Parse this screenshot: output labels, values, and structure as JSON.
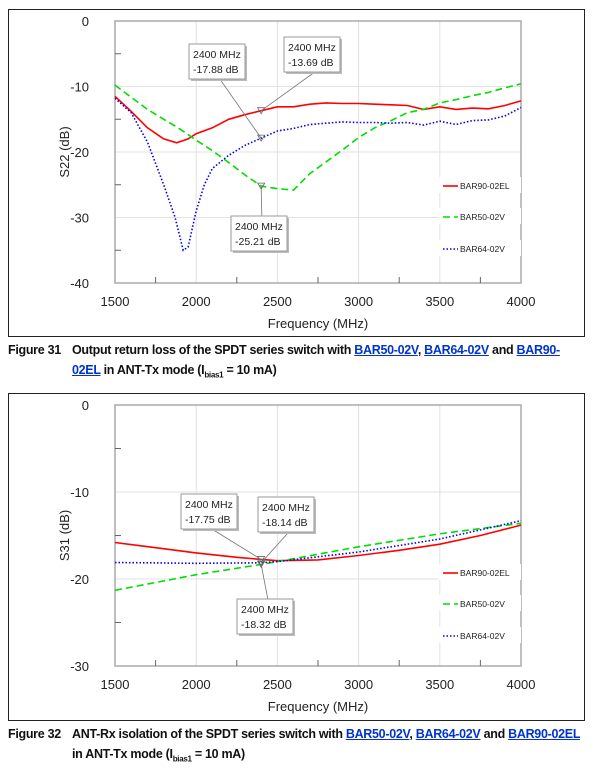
{
  "figures": [
    {
      "caption_number": "Figure 31",
      "caption_pre": "Output return loss of the SPDT series switch with ",
      "caption_links": [
        "BAR50-02V",
        "BAR64-02V",
        "BAR90-02EL"
      ],
      "caption_sep1": ", ",
      "caption_sep2": " and ",
      "caption_post": " in   ANT-Tx mode (I",
      "caption_sub": "bias1",
      "caption_end": " = 10 mA)"
    },
    {
      "caption_number": "Figure 32",
      "caption_pre": "ANT-Rx isolation of the SPDT series switch with ",
      "caption_links": [
        "BAR50-02V",
        "BAR64-02V",
        "BAR90-02EL"
      ],
      "caption_sep1": ", ",
      "caption_sep2": " and ",
      "caption_post": " in ANT-Tx mode (I",
      "caption_sub": "bias1",
      "caption_end": " = 10 mA)"
    }
  ],
  "chart_data": [
    {
      "type": "line",
      "xlabel": "Frequency (MHz)",
      "ylabel": "S22 (dB)",
      "xlim": [
        1500,
        4000
      ],
      "ylim": [
        -40,
        0
      ],
      "xticks": [
        "1500",
        "2000",
        "2500",
        "3000",
        "3500",
        "4000"
      ],
      "yticks": [
        "0",
        "-10",
        "-20",
        "-30",
        "-40"
      ],
      "grid": true,
      "legend_position": "right",
      "series": [
        {
          "name": "BAR90-02EL",
          "color": "#ff0000",
          "style": "solid",
          "x": [
            1500,
            1600,
            1700,
            1800,
            1880,
            1950,
            2000,
            2100,
            2200,
            2300,
            2400,
            2500,
            2600,
            2700,
            2800,
            2900,
            3000,
            3100,
            3200,
            3300,
            3400,
            3500,
            3600,
            3700,
            3800,
            3900,
            4000
          ],
          "y": [
            -11.5,
            -13.8,
            -16.3,
            -18.0,
            -18.6,
            -18.0,
            -17.2,
            -16.3,
            -15.0,
            -14.3,
            -13.69,
            -13.1,
            -13.1,
            -12.7,
            -12.5,
            -12.6,
            -12.6,
            -12.7,
            -12.8,
            -12.9,
            -13.5,
            -13.1,
            -13.5,
            -13.3,
            -13.4,
            -12.9,
            -12.2
          ]
        },
        {
          "name": "BAR50-02V",
          "color": "#00dd00",
          "style": "dashed",
          "x": [
            1500,
            1700,
            1900,
            2000,
            2100,
            2200,
            2300,
            2400,
            2500,
            2600,
            2700,
            2800,
            2900,
            3000,
            3100,
            3200,
            3300,
            3400,
            3500,
            3600,
            3700,
            3800,
            3900,
            4000
          ],
          "y": [
            -9.8,
            -13.5,
            -16.5,
            -18.2,
            -19.8,
            -21.6,
            -23.5,
            -25.21,
            -25.6,
            -25.8,
            -23.3,
            -21.5,
            -19.7,
            -17.8,
            -16.3,
            -15.2,
            -14.0,
            -13.5,
            -12.5,
            -12.0,
            -11.4,
            -10.9,
            -10.2,
            -9.6
          ]
        },
        {
          "name": "BAR64-02V",
          "color": "#0000ee",
          "style": "dotted",
          "x": [
            1500,
            1600,
            1700,
            1800,
            1870,
            1920,
            1950,
            2000,
            2050,
            2100,
            2200,
            2300,
            2400,
            2500,
            2600,
            2700,
            2800,
            2900,
            3000,
            3100,
            3200,
            3300,
            3400,
            3500,
            3600,
            3700,
            3800,
            3900,
            4000
          ],
          "y": [
            -11.8,
            -14.0,
            -18.5,
            -25.0,
            -30.0,
            -35.0,
            -34.5,
            -29.0,
            -25.0,
            -22.5,
            -20.5,
            -19.0,
            -17.88,
            -16.8,
            -16.4,
            -15.8,
            -15.6,
            -15.4,
            -15.5,
            -15.5,
            -15.6,
            -15.5,
            -15.9,
            -15.3,
            -15.8,
            -15.2,
            -15.1,
            -14.5,
            -13.2
          ]
        }
      ],
      "annotations": [
        {
          "x": 2400,
          "y": -17.88,
          "line1": "2400 MHz",
          "line2": "-17.88 dB"
        },
        {
          "x": 2400,
          "y": -13.69,
          "line1": "2400 MHz",
          "line2": "-13.69 dB"
        },
        {
          "x": 2400,
          "y": -25.21,
          "line1": "2400 MHz",
          "line2": "-25.21 dB"
        }
      ]
    },
    {
      "type": "line",
      "xlabel": "Frequency (MHz)",
      "ylabel": "S31 (dB)",
      "xlim": [
        1500,
        4000
      ],
      "ylim": [
        -30,
        0
      ],
      "xticks": [
        "1500",
        "2000",
        "2500",
        "3000",
        "3500",
        "4000"
      ],
      "yticks": [
        "0",
        "-10",
        "-20",
        "-30"
      ],
      "grid": true,
      "legend_position": "right",
      "series": [
        {
          "name": "BAR90-02EL",
          "color": "#ff0000",
          "style": "solid",
          "x": [
            1500,
            1750,
            2000,
            2250,
            2400,
            2500,
            2750,
            3000,
            3250,
            3500,
            3750,
            4000
          ],
          "y": [
            -15.8,
            -16.4,
            -17.0,
            -17.5,
            -17.75,
            -17.9,
            -17.8,
            -17.3,
            -16.7,
            -16.0,
            -15.0,
            -13.8
          ]
        },
        {
          "name": "BAR50-02V",
          "color": "#00dd00",
          "style": "dashed",
          "x": [
            1500,
            2000,
            2400,
            2500,
            3000,
            3500,
            4000
          ],
          "y": [
            -21.3,
            -19.5,
            -18.32,
            -18.0,
            -16.3,
            -14.8,
            -13.6
          ]
        },
        {
          "name": "BAR64-02V",
          "color": "#0000ee",
          "style": "dotted",
          "x": [
            1500,
            2000,
            2400,
            2500,
            3000,
            3500,
            4000
          ],
          "y": [
            -18.1,
            -18.2,
            -18.14,
            -18.0,
            -16.9,
            -15.4,
            -13.3
          ]
        }
      ],
      "annotations": [
        {
          "x": 2400,
          "y": -17.75,
          "line1": "2400 MHz",
          "line2": "-17.75 dB"
        },
        {
          "x": 2400,
          "y": -18.14,
          "line1": "2400 MHz",
          "line2": "-18.14 dB"
        },
        {
          "x": 2400,
          "y": -18.32,
          "line1": "2400 MHz",
          "line2": "-18.32 dB"
        }
      ]
    }
  ]
}
